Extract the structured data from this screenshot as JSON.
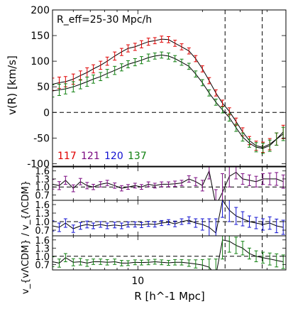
{
  "chart_data": [
    {
      "type": "line",
      "role": "main",
      "annotation": "R_eff=25-30 Mpc/h",
      "ylabel": "v(R) [km/s]",
      "x_scale": "log",
      "xlim": [
        4.0,
        49.0
      ],
      "ylim": [
        -105,
        200
      ],
      "yticks": [
        -100,
        -50,
        0,
        50,
        100,
        150,
        200
      ],
      "vlines": [
        25.5,
        38.0
      ],
      "hline": 0,
      "legend": [
        "117",
        "121",
        "120",
        "137"
      ],
      "legend_colors": [
        "#e00000",
        "#7a0a80",
        "#1010d0",
        "#108010"
      ],
      "series": [
        {
          "name": "117",
          "color": "#e00000",
          "x": [
            4.0,
            4.3,
            4.6,
            5.0,
            5.4,
            5.8,
            6.2,
            6.7,
            7.2,
            7.8,
            8.4,
            9.0,
            9.7,
            10.4,
            11.2,
            12.0,
            12.9,
            13.9,
            14.9,
            16.0,
            17.3,
            18.6,
            20.0,
            21.5,
            23.1,
            24.8,
            26.7,
            28.7,
            30.8,
            33.1,
            35.6,
            38.3,
            41.2,
            44.3,
            47.6
          ],
          "y": [
            55,
            58,
            60,
            65,
            72,
            78,
            85,
            92,
            100,
            110,
            118,
            125,
            128,
            133,
            138,
            140,
            143,
            142,
            135,
            128,
            120,
            105,
            85,
            62,
            38,
            18,
            2,
            -18,
            -38,
            -55,
            -65,
            -68,
            -62,
            -52,
            -38
          ],
          "err": [
            12,
            11,
            10,
            10,
            9,
            9,
            8,
            8,
            8,
            8,
            7,
            7,
            7,
            7,
            7,
            6,
            6,
            6,
            6,
            6,
            6,
            6,
            6,
            6,
            6,
            6,
            7,
            7,
            8,
            8,
            9,
            10,
            11,
            12,
            13
          ]
        },
        {
          "name": "137",
          "color": "#108010",
          "x": [
            4.0,
            4.3,
            4.6,
            5.0,
            5.4,
            5.8,
            6.2,
            6.7,
            7.2,
            7.8,
            8.4,
            9.0,
            9.7,
            10.4,
            11.2,
            12.0,
            12.9,
            13.9,
            14.9,
            16.0,
            17.3,
            18.6,
            20.0,
            21.5,
            23.1,
            24.8,
            26.7,
            28.7,
            30.8,
            33.1,
            35.6,
            38.3,
            41.2,
            44.3,
            47.6
          ],
          "y": [
            42,
            44,
            46,
            50,
            55,
            60,
            65,
            70,
            76,
            82,
            88,
            94,
            98,
            102,
            107,
            110,
            112,
            110,
            105,
            98,
            90,
            75,
            58,
            38,
            20,
            5,
            -10,
            -30,
            -48,
            -60,
            -68,
            -70,
            -65,
            -52,
            -42
          ],
          "err": [
            12,
            11,
            10,
            10,
            9,
            9,
            8,
            8,
            8,
            8,
            7,
            7,
            7,
            7,
            7,
            6,
            6,
            6,
            6,
            6,
            6,
            6,
            6,
            6,
            6,
            6,
            7,
            7,
            8,
            8,
            9,
            10,
            11,
            12,
            13
          ]
        }
      ]
    },
    {
      "type": "line",
      "role": "ratio",
      "ylabel": "v_{vΛCDM} / v_{ΛCDM}",
      "xlabel": "R [h^-1 Mpc]",
      "x_scale": "log",
      "xlim": [
        4.0,
        49.0
      ],
      "xtick_labels": [
        {
          "value": 10,
          "label": "10"
        }
      ],
      "panels": [
        {
          "name": "121",
          "color": "#7a0a80",
          "ylim": [
            0.5,
            1.75
          ],
          "yticks": [
            0.7,
            1.0,
            1.3,
            1.6
          ],
          "x": [
            4.0,
            4.3,
            4.6,
            5.0,
            5.4,
            5.8,
            6.2,
            6.7,
            7.2,
            7.8,
            8.4,
            9.0,
            9.7,
            10.4,
            11.2,
            12.0,
            12.9,
            13.9,
            14.9,
            16.0,
            17.3,
            18.6,
            20.0,
            21.5,
            23.1,
            24.8,
            26.7,
            28.7,
            30.8,
            33.1,
            35.6,
            38.3,
            41.2,
            44.3,
            47.6
          ],
          "y": [
            1.1,
            1.05,
            1.25,
            0.95,
            1.2,
            1.05,
            1.0,
            1.1,
            1.15,
            1.05,
            0.95,
            1.0,
            1.05,
            1.0,
            1.1,
            1.05,
            1.1,
            1.1,
            1.12,
            1.15,
            1.3,
            1.2,
            1.05,
            1.6,
            0.3,
            0.8,
            1.4,
            1.55,
            1.3,
            1.25,
            1.2,
            1.3,
            1.3,
            1.3,
            1.2
          ],
          "err": [
            0.18,
            0.15,
            0.15,
            0.13,
            0.12,
            0.12,
            0.1,
            0.1,
            0.1,
            0.1,
            0.1,
            0.09,
            0.09,
            0.09,
            0.09,
            0.09,
            0.09,
            0.09,
            0.1,
            0.1,
            0.12,
            0.15,
            0.2,
            0.3,
            0.6,
            0.7,
            0.4,
            0.25,
            0.2,
            0.2,
            0.2,
            0.2,
            0.22,
            0.24,
            0.25
          ]
        },
        {
          "name": "120",
          "color": "#1010d0",
          "ylim": [
            0.5,
            1.75
          ],
          "yticks": [
            0.7,
            1.0,
            1.3,
            1.6
          ],
          "x": [
            4.0,
            4.3,
            4.6,
            5.0,
            5.4,
            5.8,
            6.2,
            6.7,
            7.2,
            7.8,
            8.4,
            9.0,
            9.7,
            10.4,
            11.2,
            12.0,
            12.9,
            13.9,
            14.9,
            16.0,
            17.3,
            18.6,
            20.0,
            21.5,
            23.1,
            24.8,
            26.7,
            28.7,
            30.8,
            33.1,
            35.6,
            38.3,
            41.2,
            44.3,
            47.6
          ],
          "y": [
            0.85,
            0.8,
            0.95,
            0.75,
            0.85,
            0.9,
            0.85,
            0.9,
            0.85,
            0.88,
            0.85,
            0.9,
            0.9,
            0.88,
            0.92,
            0.9,
            0.95,
            0.98,
            0.92,
            1.0,
            1.05,
            0.95,
            0.9,
            0.8,
            0.6,
            1.75,
            1.4,
            1.2,
            1.1,
            1.0,
            0.95,
            0.9,
            0.95,
            0.85,
            0.8
          ],
          "err": [
            0.18,
            0.15,
            0.15,
            0.13,
            0.12,
            0.12,
            0.1,
            0.1,
            0.1,
            0.1,
            0.1,
            0.09,
            0.09,
            0.09,
            0.09,
            0.09,
            0.09,
            0.09,
            0.1,
            0.1,
            0.12,
            0.15,
            0.2,
            0.3,
            0.5,
            0.6,
            0.4,
            0.3,
            0.25,
            0.2,
            0.2,
            0.2,
            0.22,
            0.24,
            0.25
          ]
        },
        {
          "name": "137",
          "color": "#108010",
          "ylim": [
            0.5,
            1.75
          ],
          "yticks": [
            0.7,
            1.0,
            1.3,
            1.6
          ],
          "x": [
            4.0,
            4.3,
            4.6,
            5.0,
            5.4,
            5.8,
            6.2,
            6.7,
            7.2,
            7.8,
            8.4,
            9.0,
            9.7,
            10.4,
            11.2,
            12.0,
            12.9,
            13.9,
            14.9,
            16.0,
            17.3,
            18.6,
            20.0,
            21.5,
            23.1,
            24.8,
            26.7,
            28.7,
            30.8,
            33.1,
            35.6,
            38.3,
            41.2,
            44.3,
            47.6
          ],
          "y": [
            0.8,
            0.75,
            0.95,
            0.78,
            0.8,
            0.75,
            0.8,
            0.8,
            0.78,
            0.8,
            0.75,
            0.75,
            0.78,
            0.77,
            0.78,
            0.8,
            0.78,
            0.76,
            0.78,
            0.78,
            0.75,
            0.72,
            0.68,
            0.6,
            0.3,
            1.6,
            1.55,
            1.4,
            1.3,
            1.1,
            1.0,
            0.95,
            0.9,
            0.85,
            0.8
          ],
          "err": [
            0.18,
            0.15,
            0.15,
            0.13,
            0.12,
            0.12,
            0.1,
            0.1,
            0.1,
            0.1,
            0.1,
            0.09,
            0.09,
            0.09,
            0.09,
            0.09,
            0.09,
            0.09,
            0.1,
            0.1,
            0.12,
            0.15,
            0.2,
            0.3,
            0.6,
            0.7,
            0.4,
            0.3,
            0.25,
            0.2,
            0.2,
            0.2,
            0.22,
            0.24,
            0.25
          ]
        }
      ]
    }
  ]
}
